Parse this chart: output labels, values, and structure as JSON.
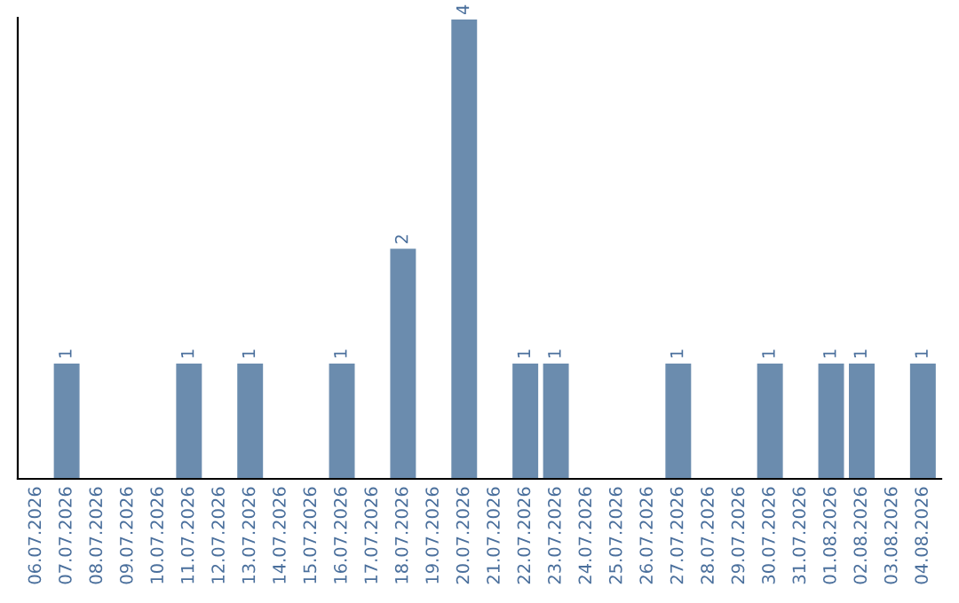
{
  "chart_data": {
    "type": "bar",
    "categories": [
      "06.07.2026",
      "07.07.2026",
      "08.07.2026",
      "09.07.2026",
      "10.07.2026",
      "11.07.2026",
      "12.07.2026",
      "13.07.2026",
      "14.07.2026",
      "15.07.2026",
      "16.07.2026",
      "17.07.2026",
      "18.07.2026",
      "19.07.2026",
      "20.07.2026",
      "21.07.2026",
      "22.07.2026",
      "23.07.2026",
      "24.07.2026",
      "25.07.2026",
      "26.07.2026",
      "27.07.2026",
      "28.07.2026",
      "29.07.2026",
      "30.07.2026",
      "31.07.2026",
      "01.08.2026",
      "02.08.2026",
      "03.08.2026",
      "04.08.2026"
    ],
    "values": [
      0,
      1,
      0,
      0,
      0,
      1,
      0,
      1,
      0,
      0,
      1,
      0,
      2,
      0,
      4,
      0,
      1,
      1,
      0,
      0,
      0,
      1,
      0,
      0,
      1,
      0,
      1,
      1,
      0,
      1
    ],
    "value_labels": [
      null,
      "1",
      null,
      null,
      null,
      "1",
      null,
      "1",
      null,
      null,
      "1",
      null,
      "2",
      null,
      "4",
      null,
      "1",
      "1",
      null,
      null,
      null,
      "1",
      null,
      null,
      "1",
      null,
      "1",
      "1",
      null,
      "1"
    ],
    "color": "#6b8cae",
    "grid": false,
    "legend": false
  }
}
